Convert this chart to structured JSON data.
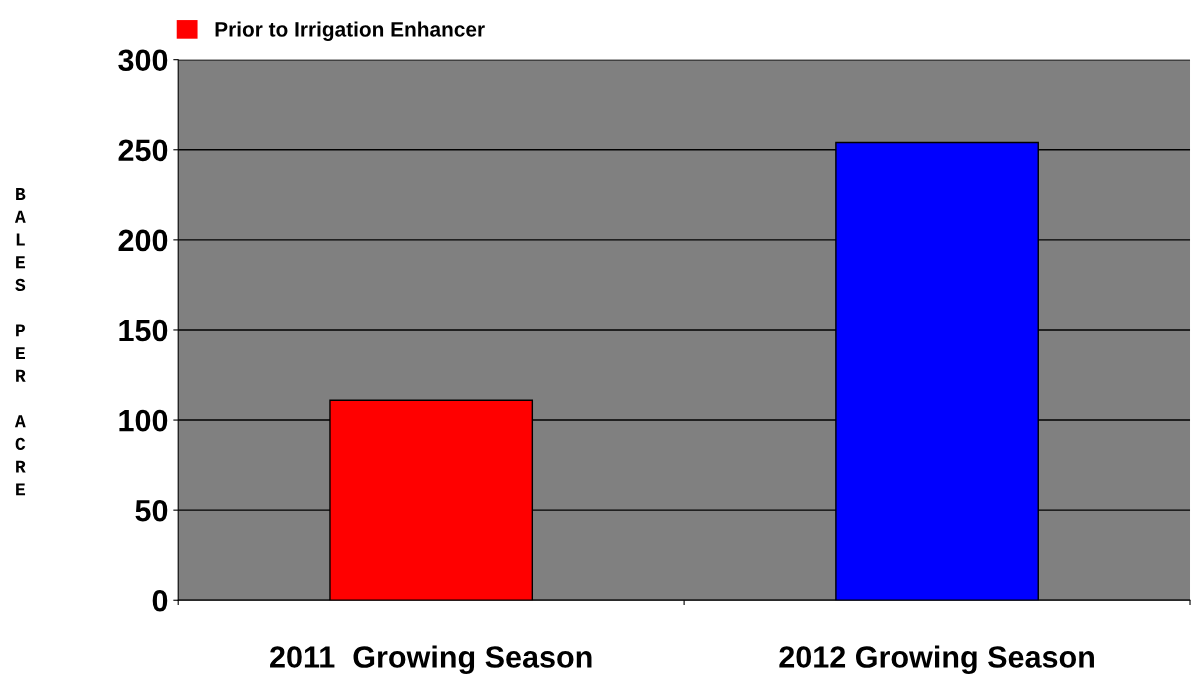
{
  "chart_data": {
    "type": "bar",
    "ylabel": "BALES PER ACRE",
    "categories": [
      "2011  Growing Season",
      "2012 Growing Season"
    ],
    "series": [
      {
        "name": "Prior to Irrigation Enhancer",
        "color": "#ff0000",
        "values": [
          111,
          null
        ]
      },
      {
        "color": "#0000ff",
        "values": [
          null,
          254
        ]
      }
    ],
    "ylim": [
      0,
      300
    ],
    "yticks": [
      0,
      50,
      100,
      150,
      200,
      250,
      300
    ],
    "grid": "y",
    "legend": "top left"
  }
}
